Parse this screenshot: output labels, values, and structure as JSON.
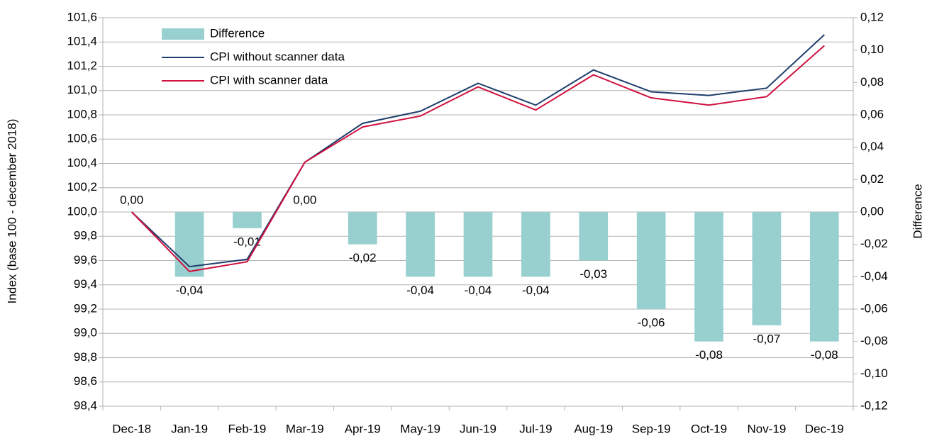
{
  "chart_data": {
    "type": "bar-line",
    "ylabel": "Index (base 100 - december 2018)",
    "y2label": "Difference",
    "categories": [
      "Dec-18",
      "Jan-19",
      "Feb-19",
      "Mar-19",
      "Apr-19",
      "May-19",
      "Jun-19",
      "Jul-19",
      "Aug-19",
      "Sep-19",
      "Oct-19",
      "Nov-19",
      "Dec-19"
    ],
    "series": [
      {
        "name": "Difference",
        "type": "bar",
        "axis": "y2",
        "color": "#97d0cf",
        "values": [
          0.0,
          -0.04,
          -0.01,
          0.0,
          -0.02,
          -0.04,
          -0.04,
          -0.04,
          -0.03,
          -0.06,
          -0.08,
          -0.07,
          -0.08
        ],
        "value_labels": [
          "0,00",
          "-0,04",
          "-0,01",
          "0,00",
          "-0,02",
          "-0,04",
          "-0,04",
          "-0,04",
          "-0,03",
          "-0,06",
          "-0,08",
          "-0,07",
          "-0,08"
        ]
      },
      {
        "name": "CPI without scanner data",
        "type": "line",
        "color": "#1f3f6e",
        "values": [
          100.0,
          99.55,
          99.61,
          100.41,
          100.73,
          100.83,
          101.06,
          100.88,
          101.17,
          100.99,
          100.96,
          101.02,
          101.46
        ]
      },
      {
        "name": "CPI with scanner data",
        "type": "line",
        "color": "#d0103f",
        "values": [
          100.0,
          99.51,
          99.59,
          100.41,
          100.7,
          100.79,
          101.03,
          100.84,
          101.13,
          100.94,
          100.88,
          100.95,
          101.37
        ]
      }
    ],
    "ylim": [
      98.4,
      101.6
    ],
    "yticks": [
      {
        "value": 98.4,
        "label": "98,4"
      },
      {
        "value": 98.6,
        "label": "98,6"
      },
      {
        "value": 98.8,
        "label": "98,8"
      },
      {
        "value": 99.0,
        "label": "99,0"
      },
      {
        "value": 99.2,
        "label": "99,2"
      },
      {
        "value": 99.4,
        "label": "99,4"
      },
      {
        "value": 99.6,
        "label": "99,6"
      },
      {
        "value": 99.8,
        "label": "99,8"
      },
      {
        "value": 100.0,
        "label": "100,0"
      },
      {
        "value": 100.2,
        "label": "100,2"
      },
      {
        "value": 100.4,
        "label": "100,4"
      },
      {
        "value": 100.6,
        "label": "100,6"
      },
      {
        "value": 100.8,
        "label": "100,8"
      },
      {
        "value": 101.0,
        "label": "101,0"
      },
      {
        "value": 101.2,
        "label": "101,2"
      },
      {
        "value": 101.4,
        "label": "101,4"
      },
      {
        "value": 101.6,
        "label": "101,6"
      }
    ],
    "y2lim": [
      -0.12,
      0.12
    ],
    "y2ticks": [
      {
        "value": -0.12,
        "label": "-0,12"
      },
      {
        "value": -0.1,
        "label": "-0,10"
      },
      {
        "value": -0.08,
        "label": "-0,08"
      },
      {
        "value": -0.06,
        "label": "-0,06"
      },
      {
        "value": -0.04,
        "label": "-0,04"
      },
      {
        "value": -0.02,
        "label": "-0,02"
      },
      {
        "value": 0,
        "label": "0,00"
      },
      {
        "value": 0.02,
        "label": "0,02"
      },
      {
        "value": 0.04,
        "label": "0,04"
      },
      {
        "value": 0.06,
        "label": "0,06"
      },
      {
        "value": 0.08,
        "label": "0,08"
      },
      {
        "value": 0.1,
        "label": "0,10"
      },
      {
        "value": 0.12,
        "label": "0,12"
      }
    ],
    "grid": true,
    "legend": "top-left"
  }
}
